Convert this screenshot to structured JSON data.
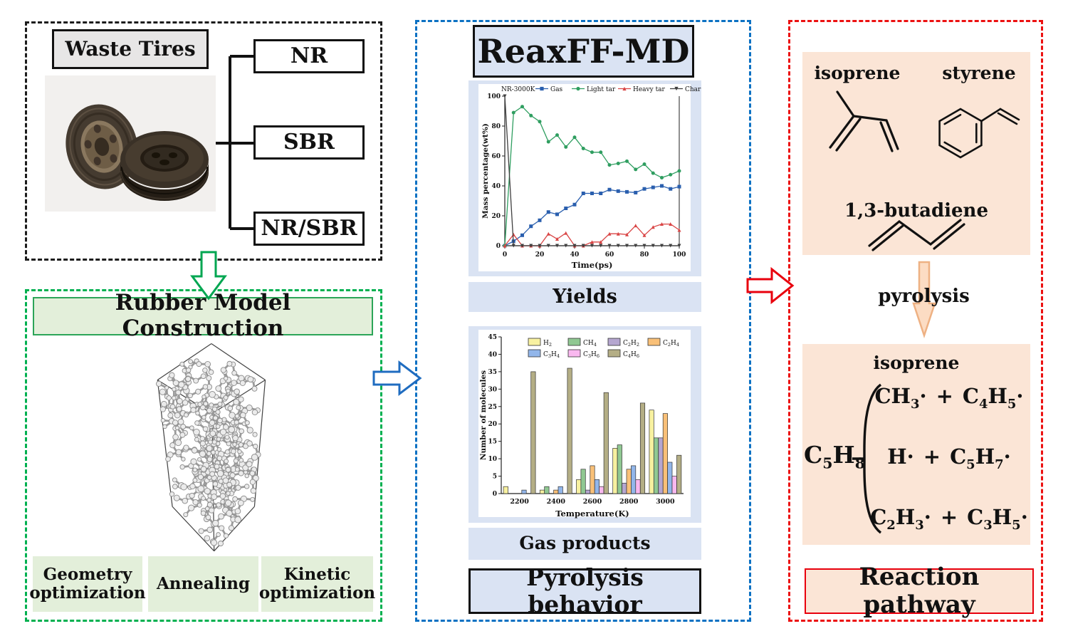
{
  "waste_tires": {
    "title": "Waste Tires",
    "branches": [
      "NR",
      "SBR",
      "NR/SBR"
    ]
  },
  "rubber_model": {
    "title": "Rubber Model Construction",
    "steps": [
      "Geometry optimization",
      "Annealing",
      "Kinetic optimization"
    ]
  },
  "reaxff": {
    "title": "ReaxFF-MD",
    "yields_label": "Yields",
    "gas_products_label": "Gas products",
    "behavior_label": "Pyrolysis behavior"
  },
  "pathway": {
    "monomer_labels": {
      "isoprene": "isoprene",
      "styrene": "styrene",
      "butadiene": "1,3-butadiene"
    },
    "pyrolysis_label": "pyrolysis",
    "decomposition": {
      "title": "isoprene",
      "reactant": "C5H8",
      "plus": "+",
      "rows": [
        [
          "CH3·",
          "C4H5·"
        ],
        [
          "H·",
          "C5H7·"
        ],
        [
          "C2H3·",
          "C3H5·"
        ]
      ]
    },
    "title": "Reaction pathway"
  },
  "colors": {
    "accent_green": "#00b050",
    "accent_blue": "#0c71c3",
    "accent_red": "#ec1111",
    "light_blue": "#dae3f3",
    "light_green": "#e3efda",
    "peach": "#fbe5d6",
    "gray": "#e7e6e6"
  },
  "chart_data": [
    {
      "type": "line",
      "legend_prefix": "NR-3000K",
      "xlabel": "Time(ps)",
      "ylabel": "Mass percentage(wt%)",
      "xlim": [
        0,
        100
      ],
      "ylim": [
        0,
        100
      ],
      "xticks": [
        0,
        20,
        40,
        60,
        80,
        100
      ],
      "yticks": [
        0,
        20,
        40,
        60,
        80,
        100
      ],
      "legend_position": "top",
      "grid": false,
      "x": [
        0,
        5,
        10,
        15,
        20,
        25,
        30,
        35,
        40,
        45,
        50,
        55,
        60,
        65,
        70,
        75,
        80,
        85,
        90,
        95,
        100
      ],
      "series": [
        {
          "name": "Gas",
          "marker": "square",
          "color": "#2a5fae",
          "values": [
            0,
            3,
            7,
            13,
            17,
            22.5,
            21,
            25,
            27.5,
            35,
            35,
            35,
            37.5,
            36.5,
            36,
            35.5,
            38,
            39,
            40,
            38,
            39.5
          ]
        },
        {
          "name": "Light tar",
          "marker": "circle",
          "color": "#2f9e60",
          "values": [
            0,
            89,
            93,
            87,
            83,
            69.5,
            74,
            66,
            72.5,
            65,
            62.5,
            62.5,
            54,
            55,
            56.5,
            51,
            54.5,
            48.5,
            45.5,
            47.5,
            50
          ]
        },
        {
          "name": "Heavy tar",
          "marker": "triangle-up",
          "color": "#d94545",
          "values": [
            0,
            7.5,
            0,
            0,
            0,
            8,
            4.5,
            8.5,
            0,
            0,
            2.5,
            2.5,
            8,
            8,
            7.5,
            13.5,
            7,
            12.5,
            14.5,
            14.5,
            10.5
          ]
        },
        {
          "name": "Char",
          "marker": "triangle-down",
          "color": "#3f3f3f",
          "values": [
            100,
            0,
            0,
            0,
            0,
            0,
            0,
            0,
            0,
            0,
            0,
            0,
            0,
            0,
            0,
            0,
            0,
            0,
            0,
            0,
            0
          ]
        }
      ]
    },
    {
      "type": "bar",
      "xlabel": "Temperature(K)",
      "ylabel": "Number of molecules",
      "ylim": [
        0,
        45
      ],
      "yticks": [
        0,
        5,
        10,
        15,
        20,
        25,
        30,
        35,
        40,
        45
      ],
      "legend_position": "top-left-inside",
      "legend_rows": [
        4,
        3
      ],
      "grid": false,
      "categories": [
        "2200",
        "2400",
        "2600",
        "2800",
        "3000"
      ],
      "series": [
        {
          "name": "H2",
          "color": "#f8f1a0",
          "values": [
            2,
            1,
            4,
            13,
            24
          ]
        },
        {
          "name": "CH4",
          "color": "#90c892",
          "values": [
            0,
            2,
            7,
            14,
            16
          ]
        },
        {
          "name": "C2H2",
          "color": "#b5a6d0",
          "values": [
            0,
            0,
            1,
            3,
            16
          ]
        },
        {
          "name": "C2H4",
          "color": "#f9c078",
          "values": [
            0,
            1,
            8,
            7,
            23
          ]
        },
        {
          "name": "C3H4",
          "color": "#92b6ea",
          "values": [
            1,
            2,
            4,
            8,
            9
          ]
        },
        {
          "name": "C3H6",
          "color": "#f9b8ef",
          "values": [
            0,
            0,
            2,
            4,
            5
          ]
        },
        {
          "name": "C4H6",
          "color": "#b4ae85",
          "values": [
            35,
            36,
            29,
            26,
            11
          ]
        }
      ]
    }
  ]
}
